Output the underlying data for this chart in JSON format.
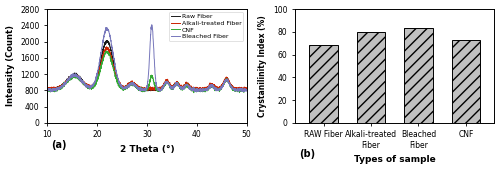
{
  "xrd_xlim": [
    10,
    50
  ],
  "xrd_ylim": [
    0,
    2800
  ],
  "xrd_yticks": [
    0,
    400,
    800,
    1200,
    1600,
    2000,
    2400,
    2800
  ],
  "xrd_xticks": [
    10,
    20,
    30,
    40,
    50
  ],
  "xrd_xlabel": "2 Theta (°)",
  "xrd_ylabel": "Intensity (Count)",
  "xrd_label_a": "(a)",
  "legend_labels": [
    "Raw Fiber",
    "Alkali-treated Fiber",
    "CNF",
    "Bleached Fiber"
  ],
  "legend_colors": [
    "#1a1a1a",
    "#cc2200",
    "#33aa33",
    "#7777bb"
  ],
  "bar_categories": [
    "RAW Fiber",
    "Alkali-treated\nFiber",
    "Bleached\nFiber",
    "CNF"
  ],
  "bar_values": [
    68,
    80,
    83,
    73
  ],
  "bar_color": "#c0c0c0",
  "bar_ylim": [
    0,
    100
  ],
  "bar_yticks": [
    0,
    20,
    40,
    60,
    80,
    100
  ],
  "bar_ylabel": "Crystanilinity Index (%)",
  "bar_xlabel": "Types of sample",
  "label_b": "(b)"
}
